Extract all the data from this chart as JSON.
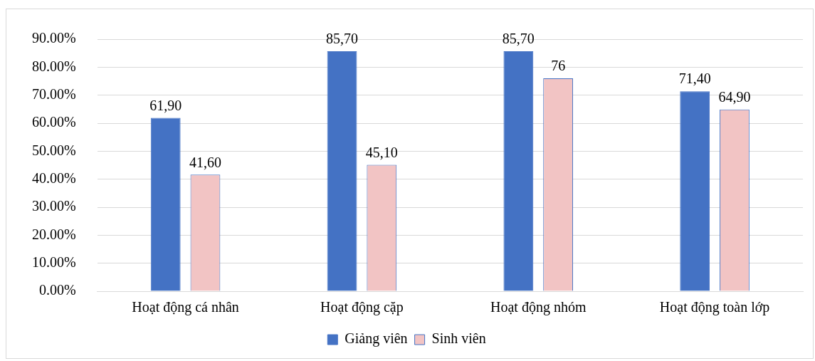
{
  "chart_data": {
    "type": "bar",
    "categories": [
      "Hoạt động cá nhân",
      "Hoạt động cặp",
      "Hoạt động nhóm",
      "Hoạt động toàn lớp"
    ],
    "series": [
      {
        "name": "Giảng viên",
        "color": "#4472c4",
        "values": [
          61.9,
          85.7,
          85.7,
          71.4
        ],
        "value_labels": [
          "61,90",
          "85,70",
          "85,70",
          "71,40"
        ]
      },
      {
        "name": "Sinh viên",
        "color": "#f2c4c4",
        "values": [
          41.6,
          45.1,
          76,
          64.9
        ],
        "value_labels": [
          "41,60",
          "45,10",
          "76",
          "64,90"
        ]
      }
    ],
    "ylim": [
      0,
      90
    ],
    "yticks": [
      {
        "value": 0,
        "label": "0.00%"
      },
      {
        "value": 10,
        "label": "10.00%"
      },
      {
        "value": 20,
        "label": "20.00%"
      },
      {
        "value": 30,
        "label": "30.00%"
      },
      {
        "value": 40,
        "label": "40.00%"
      },
      {
        "value": 50,
        "label": "50.00%"
      },
      {
        "value": 60,
        "label": "60.00%"
      },
      {
        "value": 70,
        "label": "70.00%"
      },
      {
        "value": 80,
        "label": "80.00%"
      },
      {
        "value": 90,
        "label": "90.00%"
      }
    ],
    "grid": "y",
    "legend": "bottom"
  }
}
